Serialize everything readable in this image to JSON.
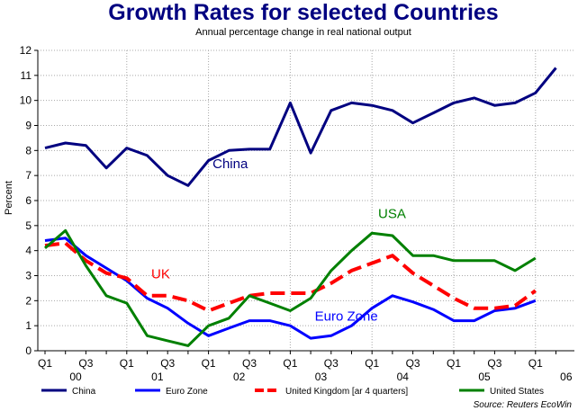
{
  "chart_data": {
    "type": "line",
    "title": "Growth Rates for selected Countries",
    "subtitle": "Annual percentage change in real national output",
    "ylabel": "Percent",
    "xlabel": "",
    "ylim": [
      0,
      12
    ],
    "yticks": [
      0,
      1,
      2,
      3,
      4,
      5,
      6,
      7,
      8,
      9,
      10,
      11,
      12
    ],
    "grid": true,
    "legend_position": "bottom",
    "source": "Source: Reuters EcoWin",
    "x": [
      "2000-Q1",
      "2000-Q2",
      "2000-Q3",
      "2000-Q4",
      "2001-Q1",
      "2001-Q2",
      "2001-Q3",
      "2001-Q4",
      "2002-Q1",
      "2002-Q2",
      "2002-Q3",
      "2002-Q4",
      "2003-Q1",
      "2003-Q2",
      "2003-Q3",
      "2003-Q4",
      "2004-Q1",
      "2004-Q2",
      "2004-Q3",
      "2004-Q4",
      "2005-Q1",
      "2005-Q2",
      "2005-Q3",
      "2005-Q4",
      "2006-Q1",
      "2006-Q2"
    ],
    "quarter_labels": [
      {
        "label": "Q1",
        "index": 0
      },
      {
        "label": "Q3",
        "index": 2
      },
      {
        "label": "Q1",
        "index": 4
      },
      {
        "label": "Q3",
        "index": 6
      },
      {
        "label": "Q1",
        "index": 8
      },
      {
        "label": "Q3",
        "index": 10
      },
      {
        "label": "Q1",
        "index": 12
      },
      {
        "label": "Q3",
        "index": 14
      },
      {
        "label": "Q1",
        "index": 16
      },
      {
        "label": "Q3",
        "index": 18
      },
      {
        "label": "Q1",
        "index": 20
      },
      {
        "label": "Q3",
        "index": 22
      },
      {
        "label": "Q1",
        "index": 24
      }
    ],
    "year_labels": [
      {
        "label": "00",
        "index": 1.5
      },
      {
        "label": "01",
        "index": 5.5
      },
      {
        "label": "02",
        "index": 9.5
      },
      {
        "label": "03",
        "index": 13.5
      },
      {
        "label": "04",
        "index": 17.5
      },
      {
        "label": "05",
        "index": 21.5
      },
      {
        "label": "06",
        "index": 25.5
      }
    ],
    "series": [
      {
        "name": "China",
        "color": "#000080",
        "dash": "solid",
        "values": [
          8.1,
          8.3,
          8.2,
          7.3,
          8.1,
          7.8,
          7.0,
          6.6,
          7.6,
          8.0,
          8.05,
          8.05,
          9.9,
          7.9,
          9.6,
          9.9,
          9.8,
          9.6,
          9.1,
          9.5,
          9.9,
          10.1,
          9.8,
          9.9,
          10.3,
          11.3
        ]
      },
      {
        "name": "Euro Zone",
        "color": "#0000ff",
        "dash": "solid",
        "values": [
          4.4,
          4.5,
          3.8,
          3.3,
          2.8,
          2.1,
          1.7,
          1.1,
          0.6,
          0.9,
          1.2,
          1.2,
          1.0,
          0.5,
          0.6,
          1.0,
          1.7,
          2.2,
          1.95,
          1.65,
          1.2,
          1.2,
          1.6,
          1.7,
          2.0,
          null
        ]
      },
      {
        "name": "United Kingdom [ar 4 quarters]",
        "color": "#ff0000",
        "dash": "dashed",
        "values": [
          4.2,
          4.3,
          3.6,
          3.1,
          2.9,
          2.2,
          2.2,
          2.0,
          1.6,
          1.9,
          2.2,
          2.3,
          2.3,
          2.3,
          2.7,
          3.2,
          3.5,
          3.8,
          3.1,
          2.6,
          2.1,
          1.7,
          1.7,
          1.8,
          2.4,
          null
        ]
      },
      {
        "name": "United States",
        "color": "#008000",
        "dash": "solid",
        "values": [
          4.1,
          4.8,
          3.4,
          2.2,
          1.9,
          0.6,
          0.4,
          0.2,
          1.0,
          1.3,
          2.2,
          1.9,
          1.6,
          2.1,
          3.2,
          4.0,
          4.7,
          4.6,
          3.8,
          3.8,
          3.6,
          3.6,
          3.6,
          3.2,
          3.7,
          null
        ]
      }
    ],
    "annotations": [
      {
        "text": "China",
        "series": "China",
        "at_x": 8.2,
        "at_y": 7.3
      },
      {
        "text": "USA",
        "series": "United States",
        "at_x": 16.3,
        "at_y": 5.3
      },
      {
        "text": "UK",
        "series": "United Kingdom [ar 4 quarters]",
        "at_x": 5.2,
        "at_y": 2.9
      },
      {
        "text": "Euro Zone",
        "series": "Euro Zone",
        "at_x": 13.2,
        "at_y": 1.2
      }
    ]
  }
}
